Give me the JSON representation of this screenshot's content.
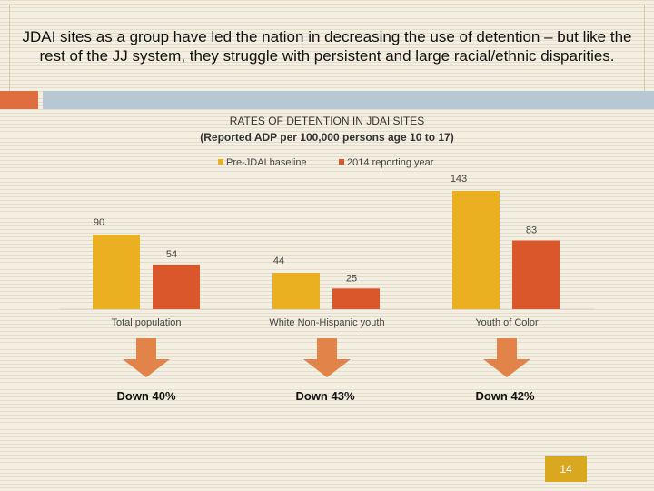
{
  "slide": {
    "title": "JDAI sites as a group have led the nation in decreasing the use of detention – but like the rest of the JJ system, they struggle with persistent and large racial/ethnic disparities.",
    "page_number": "14"
  },
  "chart_data": {
    "type": "bar",
    "title": "RATES OF DETENTION IN JDAI SITES",
    "subtitle": "(Reported ADP per 100,000 persons age 10 to 17)",
    "categories": [
      "Total population",
      "White Non-Hispanic youth",
      "Youth of Color"
    ],
    "series": [
      {
        "name": "Pre-JDAI baseline",
        "values": [
          90,
          44,
          143
        ],
        "color": "#ebb021"
      },
      {
        "name": "2014 reporting year",
        "values": [
          54,
          25,
          83
        ],
        "color": "#d9572a"
      }
    ],
    "ylim": [
      0,
      143
    ],
    "grid": false,
    "legend_position": "top"
  },
  "changes": [
    "Down 40%",
    "Down 43%",
    "Down 42%"
  ],
  "colors": {
    "arrow": "#e2844a",
    "accent_orange": "#de6e3f",
    "accent_blue": "#b7c8d4",
    "page_badge": "#d9a81e"
  }
}
